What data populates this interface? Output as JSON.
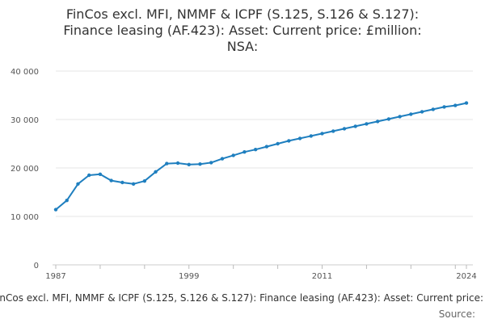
{
  "chart_data": {
    "type": "line",
    "title_lines": [
      "FinCos excl. MFI, NMMF & ICPF (S.125, S.126 & S.127):",
      "Finance leasing (AF.423): Asset: Current price: £million:",
      "NSA:"
    ],
    "series": [
      {
        "name": "FinCos excl. MFI, NMMF & ICPF (S.125, S.126 & S.127): Finance leasing (AF.423): Asset: Current price: £million: NSA",
        "x": [
          1987,
          1988,
          1989,
          1990,
          1991,
          1992,
          1993,
          1994,
          1995,
          1996,
          1997,
          1998,
          1999,
          2000,
          2001,
          2002,
          2003,
          2004,
          2005,
          2006,
          2007,
          2008,
          2009,
          2010,
          2011,
          2012,
          2013,
          2014,
          2015,
          2016,
          2017,
          2018,
          2019,
          2020,
          2021,
          2022,
          2023,
          2024
        ],
        "values": [
          11400,
          13300,
          16700,
          18500,
          18700,
          17400,
          17000,
          16700,
          17300,
          19200,
          20900,
          21000,
          20700,
          20800,
          21100,
          21900,
          22600,
          23300,
          23800,
          24400,
          25000,
          25600,
          26100,
          26600,
          27100,
          27600,
          28100,
          28600,
          29100,
          29600,
          30100,
          30600,
          31100,
          31600,
          32100,
          32600,
          32900,
          33400
        ]
      }
    ],
    "color": "#1f7fbf",
    "xlim": [
      1987,
      2024
    ],
    "ylim": [
      0,
      40000
    ],
    "x_ticks": [
      1987,
      1999,
      2011,
      2024
    ],
    "x_tick_labels": [
      "1987",
      "1999",
      "2011",
      "2024"
    ],
    "y_ticks": [
      0,
      10000,
      20000,
      30000,
      40000
    ],
    "y_tick_labels": [
      "0",
      "10 000",
      "20 000",
      "30 000",
      "40 000"
    ],
    "xlabel": "",
    "ylabel": "",
    "grid": true,
    "legend_text": "FinCos excl. MFI, NMMF & ICPF (S.125, S.126 & S.127): Finance leasing (AF.423): Asset: Current price: £million: NSA",
    "source_label": "Source:"
  }
}
